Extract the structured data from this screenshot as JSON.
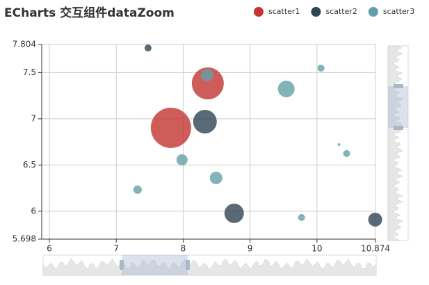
{
  "chart_data": {
    "type": "scatter",
    "title": "ECharts 交互组件dataZoom",
    "xlim": [
      5.886,
      10.874
    ],
    "xticks": [
      6,
      7,
      8,
      9,
      10,
      10.874
    ],
    "ylim": [
      5.698,
      7.804
    ],
    "yticks": [
      5.698,
      6,
      6.5,
      7,
      7.5,
      7.804
    ],
    "grid": true,
    "series": [
      {
        "name": "scatter1",
        "color": "#c23531",
        "x": [
          7.817,
          8.368
        ],
        "values": [
          6.902,
          7.383
        ],
        "sizes": [
          58,
          46
        ]
      },
      {
        "name": "scatter2",
        "color": "#2f4554",
        "x": [
          7.475,
          8.326,
          8.762,
          10.87
        ],
        "values": [
          7.766,
          6.969,
          5.977,
          5.909
        ],
        "sizes": [
          10,
          34,
          28,
          20
        ]
      },
      {
        "name": "scatter3",
        "color": "#61a0a8",
        "x": [
          8.357,
          9.541,
          10.06,
          7.983,
          8.492,
          7.319,
          10.33,
          10.444,
          9.769
        ],
        "values": [
          7.473,
          7.323,
          7.548,
          6.556,
          6.36,
          6.233,
          6.721,
          6.624,
          5.932
        ],
        "sizes": [
          18,
          24,
          10,
          16,
          18,
          12,
          4,
          10,
          10
        ]
      }
    ]
  }
}
